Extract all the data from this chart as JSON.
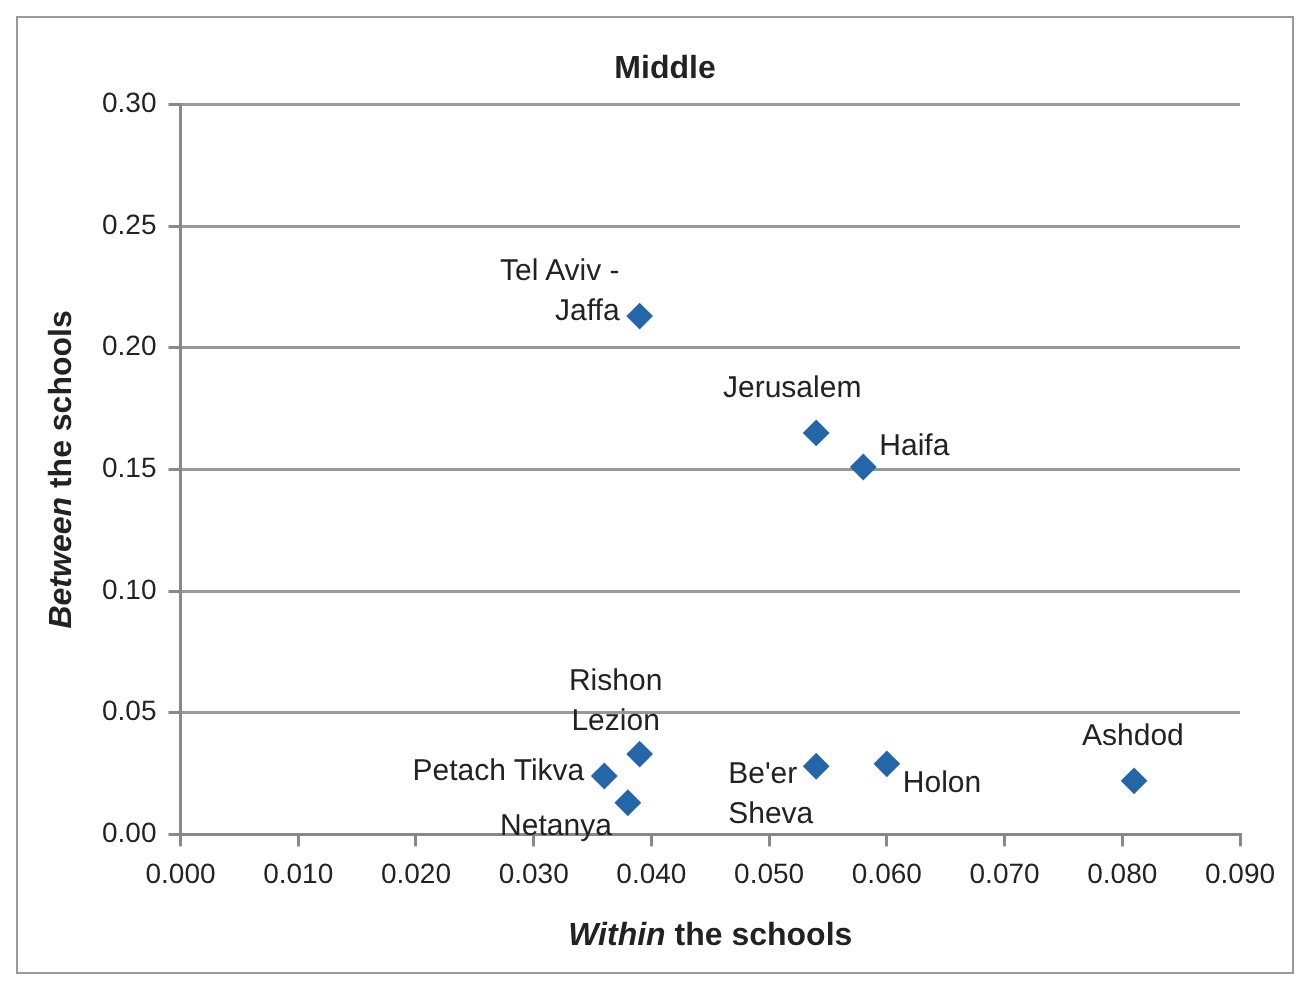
{
  "chart_data": {
    "type": "scatter",
    "title": "Middle",
    "xlabel": "Within the schools",
    "ylabel": "Between the schools",
    "series": [
      {
        "color": "#2566a8",
        "x": [
          0.039,
          0.054,
          0.058,
          0.039,
          0.036,
          0.038,
          0.054,
          0.06,
          0.081
        ],
        "values": [
          0.213,
          0.165,
          0.151,
          0.033,
          0.024,
          0.013,
          0.028,
          0.029,
          0.022
        ]
      }
    ],
    "annotations": [
      {
        "text": "Tel Aviv -\nJaffa",
        "x": 0.039,
        "y": 0.213
      },
      {
        "text": "Jerusalem",
        "x": 0.054,
        "y": 0.165
      },
      {
        "text": "Haifa",
        "x": 0.058,
        "y": 0.151
      },
      {
        "text": "Rishon\nLezion",
        "x": 0.039,
        "y": 0.033
      },
      {
        "text": "Petach Tikva",
        "x": 0.036,
        "y": 0.024
      },
      {
        "text": "Netanya",
        "x": 0.038,
        "y": 0.013
      },
      {
        "text": "Be'er\nSheva",
        "x": 0.054,
        "y": 0.028
      },
      {
        "text": "Holon",
        "x": 0.06,
        "y": 0.029
      },
      {
        "text": "Ashdod",
        "x": 0.081,
        "y": 0.022
      }
    ],
    "xlim": [
      0,
      0.09
    ],
    "ylim": [
      0,
      0.3
    ],
    "xticks": [
      {
        "value": 0,
        "label": "0.000"
      },
      {
        "value": 0.01,
        "label": "0.010"
      },
      {
        "value": 0.02,
        "label": "0.020"
      },
      {
        "value": 0.03,
        "label": "0.030"
      },
      {
        "value": 0.04,
        "label": "0.040"
      },
      {
        "value": 0.05,
        "label": "0.050"
      },
      {
        "value": 0.06,
        "label": "0.060"
      },
      {
        "value": 0.07,
        "label": "0.070"
      },
      {
        "value": 0.08,
        "label": "0.080"
      },
      {
        "value": 0.09,
        "label": "0.090"
      }
    ],
    "yticks": [
      {
        "value": 0,
        "label": "0.00"
      },
      {
        "value": 0.05,
        "label": "0.05"
      },
      {
        "value": 0.1,
        "label": "0.10"
      },
      {
        "value": 0.15,
        "label": "0.15"
      },
      {
        "value": 0.2,
        "label": "0.20"
      },
      {
        "value": 0.25,
        "label": "0.25"
      },
      {
        "value": 0.3,
        "label": "0.30"
      }
    ],
    "grid": "y",
    "legend": false,
    "marker": "diamond"
  }
}
